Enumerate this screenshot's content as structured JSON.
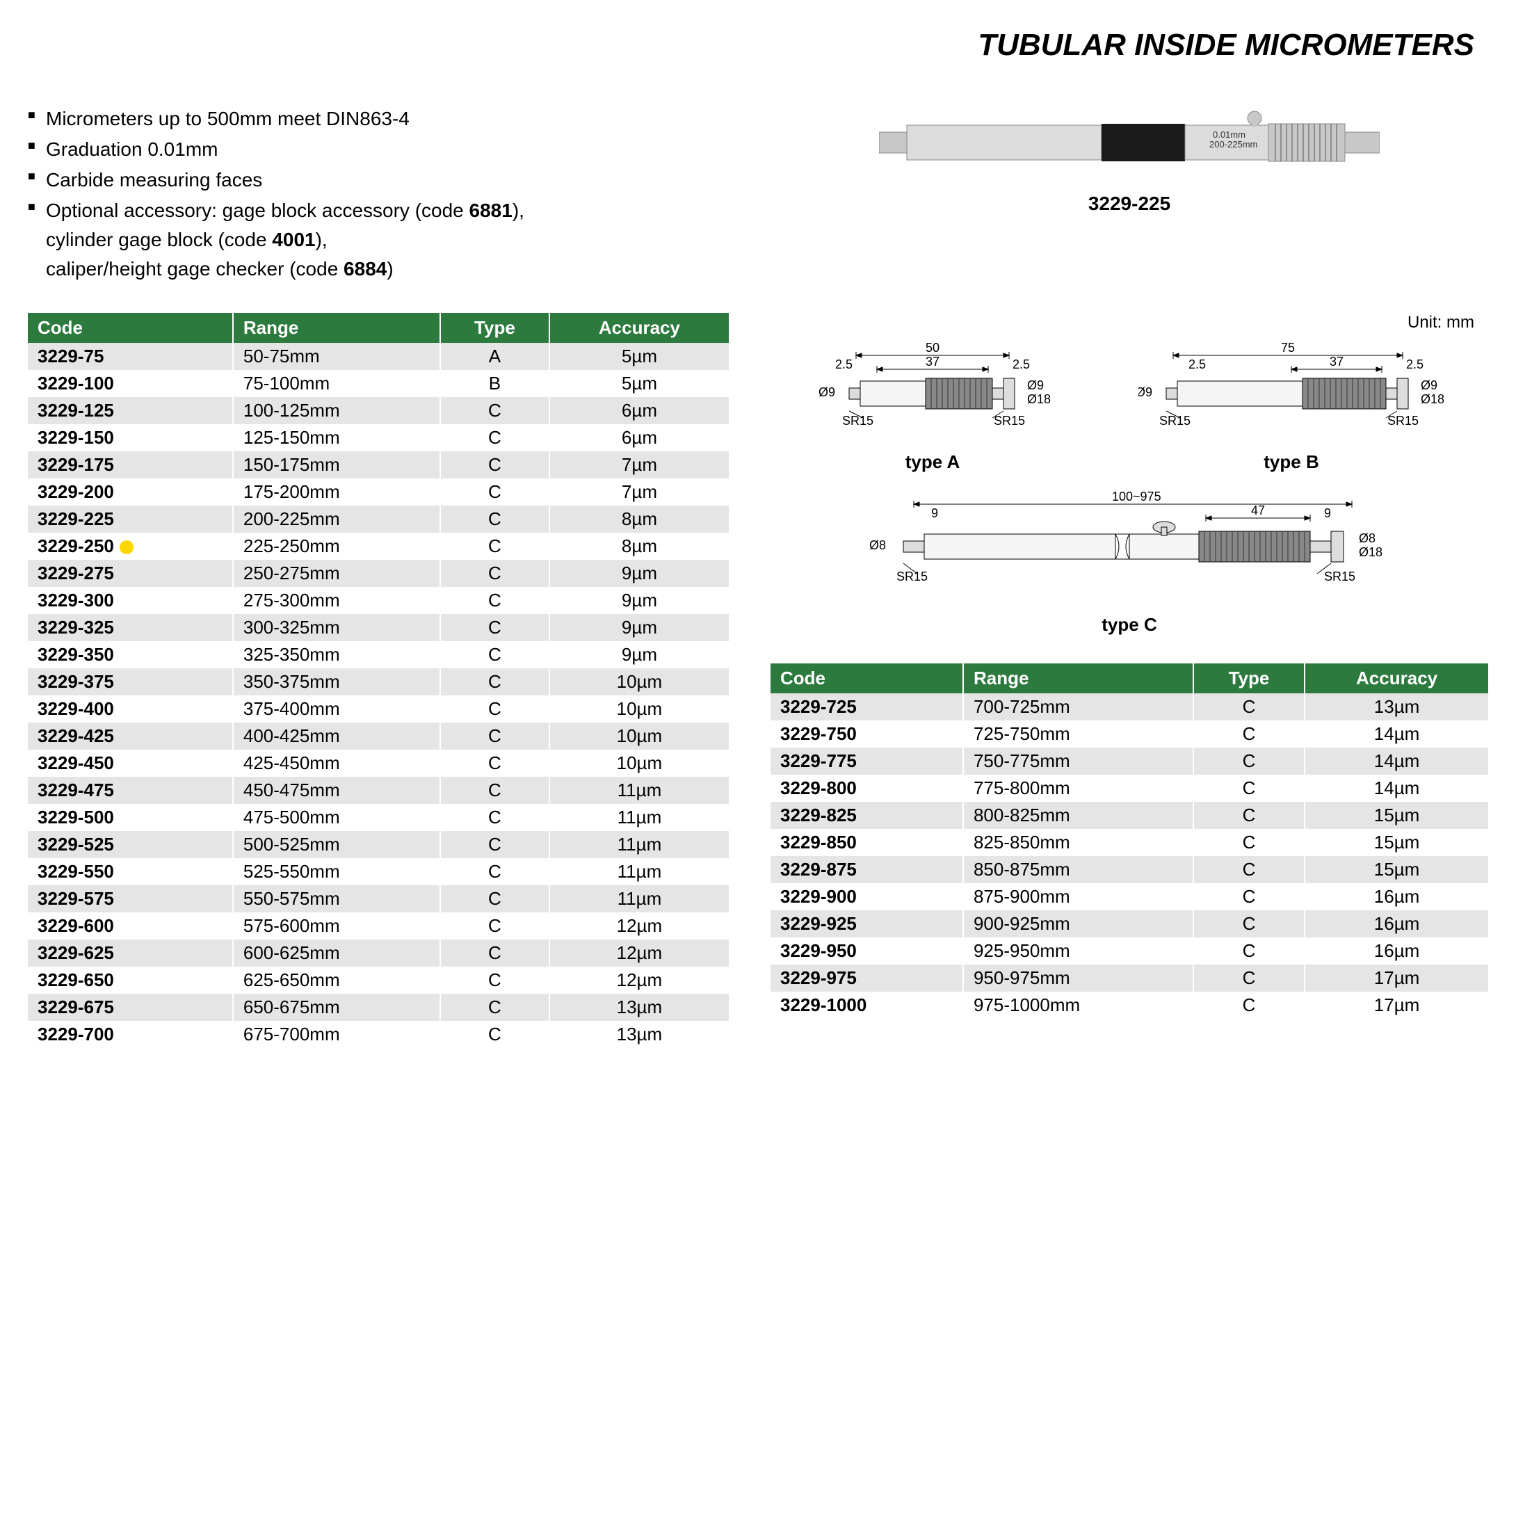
{
  "title": "TUBULAR INSIDE MICROMETERS",
  "features": {
    "items": [
      {
        "text": "Micrometers up to 500mm meet DIN863-4"
      },
      {
        "text": "Graduation 0.01mm"
      },
      {
        "text": "Carbide measuring faces"
      },
      {
        "prefix": "Optional accessory: gage block accessory (code ",
        "bold1": "6881",
        "mid1": "),",
        "line2_prefix": "cylinder gage block (code ",
        "bold2": "4001",
        "mid2": "),",
        "line3_prefix": "caliper/height gage checker (code ",
        "bold3": "6884",
        "suffix": ")"
      }
    ]
  },
  "product": {
    "label": "3229-225",
    "marking1": "0.01mm",
    "marking2": "200-225mm"
  },
  "unit_label": "Unit: mm",
  "diagrams": {
    "typeA": {
      "caption": "type A",
      "dims": {
        "total": "50",
        "mid": "37",
        "end": "2.5",
        "dia1": "Ø9",
        "dia2": "Ø18",
        "sr": "SR15"
      }
    },
    "typeB": {
      "caption": "type B",
      "dims": {
        "total": "75",
        "mid": "37",
        "end": "2.5",
        "dia1": "Ø9",
        "dia2": "Ø18",
        "sr": "SR15"
      }
    },
    "typeC": {
      "caption": "type C",
      "dims": {
        "total": "100~975",
        "mid": "47",
        "end": "9",
        "dia1": "Ø8",
        "dia2": "Ø18",
        "sr": "SR15"
      }
    }
  },
  "table": {
    "columns": [
      "Code",
      "Range",
      "Type",
      "Accuracy"
    ],
    "header_bg": "#2d7a3e",
    "header_fg": "#ffffff",
    "row_odd_bg": "#e5e5e5",
    "row_even_bg": "#ffffff",
    "col_align": [
      "left",
      "left",
      "center",
      "center"
    ],
    "highlight_color": "#ffd700",
    "rows_left": [
      {
        "code": "3229-75",
        "range": "50-75mm",
        "type": "A",
        "accuracy": "5µm"
      },
      {
        "code": "3229-100",
        "range": "75-100mm",
        "type": "B",
        "accuracy": "5µm"
      },
      {
        "code": "3229-125",
        "range": "100-125mm",
        "type": "C",
        "accuracy": "6µm"
      },
      {
        "code": "3229-150",
        "range": "125-150mm",
        "type": "C",
        "accuracy": "6µm"
      },
      {
        "code": "3229-175",
        "range": "150-175mm",
        "type": "C",
        "accuracy": "7µm"
      },
      {
        "code": "3229-200",
        "range": "175-200mm",
        "type": "C",
        "accuracy": "7µm"
      },
      {
        "code": "3229-225",
        "range": "200-225mm",
        "type": "C",
        "accuracy": "8µm"
      },
      {
        "code": "3229-250",
        "range": "225-250mm",
        "type": "C",
        "accuracy": "8µm",
        "highlight": true
      },
      {
        "code": "3229-275",
        "range": "250-275mm",
        "type": "C",
        "accuracy": "9µm"
      },
      {
        "code": "3229-300",
        "range": "275-300mm",
        "type": "C",
        "accuracy": "9µm"
      },
      {
        "code": "3229-325",
        "range": "300-325mm",
        "type": "C",
        "accuracy": "9µm"
      },
      {
        "code": "3229-350",
        "range": "325-350mm",
        "type": "C",
        "accuracy": "9µm"
      },
      {
        "code": "3229-375",
        "range": "350-375mm",
        "type": "C",
        "accuracy": "10µm"
      },
      {
        "code": "3229-400",
        "range": "375-400mm",
        "type": "C",
        "accuracy": "10µm"
      },
      {
        "code": "3229-425",
        "range": "400-425mm",
        "type": "C",
        "accuracy": "10µm"
      },
      {
        "code": "3229-450",
        "range": "425-450mm",
        "type": "C",
        "accuracy": "10µm"
      },
      {
        "code": "3229-475",
        "range": "450-475mm",
        "type": "C",
        "accuracy": "11µm"
      },
      {
        "code": "3229-500",
        "range": "475-500mm",
        "type": "C",
        "accuracy": "11µm"
      },
      {
        "code": "3229-525",
        "range": "500-525mm",
        "type": "C",
        "accuracy": "11µm"
      },
      {
        "code": "3229-550",
        "range": "525-550mm",
        "type": "C",
        "accuracy": "11µm"
      },
      {
        "code": "3229-575",
        "range": "550-575mm",
        "type": "C",
        "accuracy": "11µm"
      },
      {
        "code": "3229-600",
        "range": "575-600mm",
        "type": "C",
        "accuracy": "12µm"
      },
      {
        "code": "3229-625",
        "range": "600-625mm",
        "type": "C",
        "accuracy": "12µm"
      },
      {
        "code": "3229-650",
        "range": "625-650mm",
        "type": "C",
        "accuracy": "12µm"
      },
      {
        "code": "3229-675",
        "range": "650-675mm",
        "type": "C",
        "accuracy": "13µm"
      },
      {
        "code": "3229-700",
        "range": "675-700mm",
        "type": "C",
        "accuracy": "13µm"
      }
    ],
    "rows_right": [
      {
        "code": "3229-725",
        "range": "700-725mm",
        "type": "C",
        "accuracy": "13µm"
      },
      {
        "code": "3229-750",
        "range": "725-750mm",
        "type": "C",
        "accuracy": "14µm"
      },
      {
        "code": "3229-775",
        "range": "750-775mm",
        "type": "C",
        "accuracy": "14µm"
      },
      {
        "code": "3229-800",
        "range": "775-800mm",
        "type": "C",
        "accuracy": "14µm"
      },
      {
        "code": "3229-825",
        "range": "800-825mm",
        "type": "C",
        "accuracy": "15µm"
      },
      {
        "code": "3229-850",
        "range": "825-850mm",
        "type": "C",
        "accuracy": "15µm"
      },
      {
        "code": "3229-875",
        "range": "850-875mm",
        "type": "C",
        "accuracy": "15µm"
      },
      {
        "code": "3229-900",
        "range": "875-900mm",
        "type": "C",
        "accuracy": "16µm"
      },
      {
        "code": "3229-925",
        "range": "900-925mm",
        "type": "C",
        "accuracy": "16µm"
      },
      {
        "code": "3229-950",
        "range": "925-950mm",
        "type": "C",
        "accuracy": "16µm"
      },
      {
        "code": "3229-975",
        "range": "950-975mm",
        "type": "C",
        "accuracy": "17µm"
      },
      {
        "code": "3229-1000",
        "range": "975-1000mm",
        "type": "C",
        "accuracy": "17µm"
      }
    ]
  }
}
